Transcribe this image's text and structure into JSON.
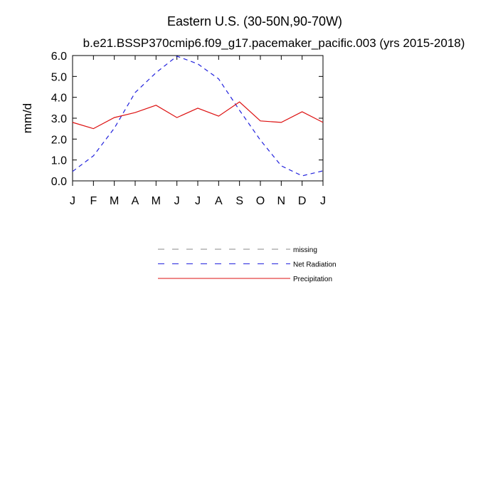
{
  "chart_data": {
    "type": "line",
    "title": "Eastern U.S. (30-50N,90-70W)",
    "subtitle": "b.e21.BSSP370cmip6.f09_g17.pacemaker_pacific.003 (yrs 2015-2018)",
    "y_label": "mm/d",
    "categories": [
      "J",
      "F",
      "M",
      "A",
      "M",
      "J",
      "J",
      "A",
      "S",
      "O",
      "N",
      "D",
      "J"
    ],
    "ylim": [
      0,
      6
    ],
    "yticks": [
      {
        "value": 0,
        "label": "0.0"
      },
      {
        "value": 1,
        "label": "1.0"
      },
      {
        "value": 2,
        "label": "2.0"
      },
      {
        "value": 3,
        "label": "3.0"
      },
      {
        "value": 4,
        "label": "4.0"
      },
      {
        "value": 5,
        "label": "5.0"
      },
      {
        "value": 6,
        "label": "6.0"
      }
    ],
    "series": [
      {
        "name": "missing",
        "color": "#888888",
        "dash": true,
        "values": [
          null,
          null,
          null,
          null,
          null,
          null,
          null,
          null,
          null,
          null,
          null,
          null,
          null
        ]
      },
      {
        "name": "Net Radiation",
        "color": "#2222dd",
        "dash": true,
        "values": [
          0.45,
          1.2,
          2.52,
          4.23,
          5.18,
          5.97,
          5.6,
          4.88,
          3.38,
          1.95,
          0.72,
          0.24,
          0.48
        ]
      },
      {
        "name": "Precipitation",
        "color": "#dd1111",
        "dash": false,
        "values": [
          2.8,
          2.5,
          3.03,
          3.27,
          3.62,
          3.03,
          3.48,
          3.1,
          3.78,
          2.87,
          2.8,
          3.31,
          2.8
        ]
      }
    ]
  }
}
